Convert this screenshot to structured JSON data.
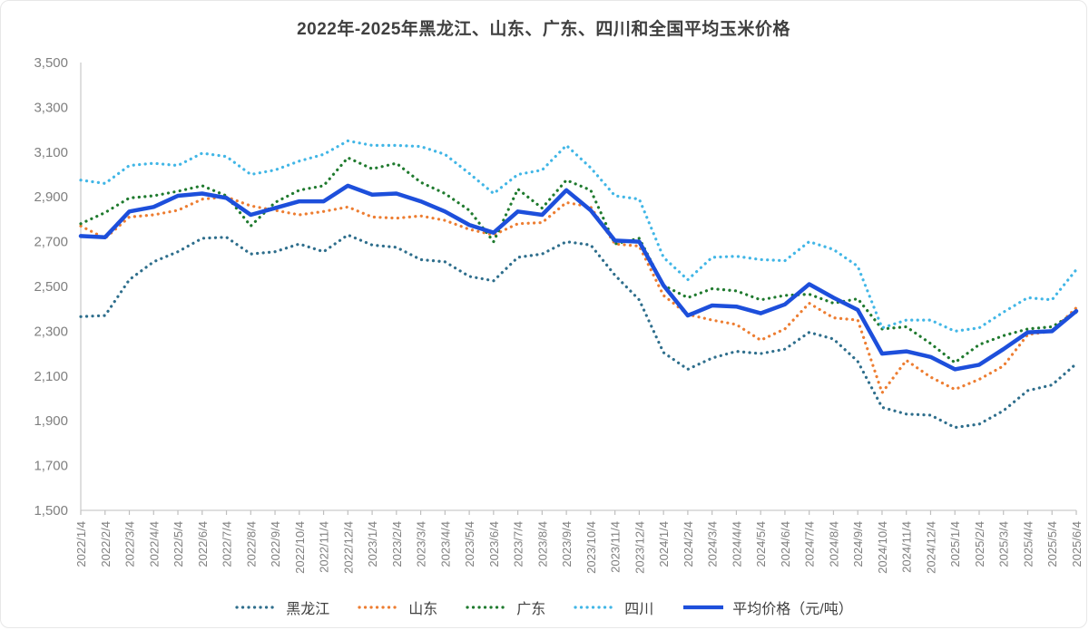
{
  "title": "2022年-2025年黑龙江、山东、广东、四川和全国平均玉米价格",
  "colors": {
    "title_text": "#3f3f3f",
    "axis_text": "#7f7f7f",
    "axis_line": "#cccccc",
    "tick_mark": "#bfbfbf",
    "heilongjiang": "#2E6E8C",
    "shandong": "#ED7D31",
    "guangdong": "#1F7A2E",
    "sichuan": "#41B6E6",
    "average": "#1D4FDB"
  },
  "chart_data": {
    "type": "line",
    "title": "2022年-2025年黑龙江、山东、广东、四川和全国平均玉米价格",
    "xlabel": "",
    "ylabel": "",
    "ylim": [
      1500,
      3500
    ],
    "ytick_step": 200,
    "yticks": [
      "3,500",
      "3,300",
      "3,100",
      "2,900",
      "2,700",
      "2,500",
      "2,300",
      "2,100",
      "1,900",
      "1,700",
      "1,500"
    ],
    "grid": false,
    "legend_position": "bottom",
    "x": [
      "2022/1/4",
      "2022/2/4",
      "2022/3/4",
      "2022/4/4",
      "2022/5/4",
      "2022/6/4",
      "2022/7/4",
      "2022/8/4",
      "2022/9/4",
      "2022/10/4",
      "2022/11/4",
      "2022/12/4",
      "2023/1/4",
      "2023/2/4",
      "2023/3/4",
      "2023/4/4",
      "2023/5/4",
      "2023/6/4",
      "2023/7/4",
      "2023/8/4",
      "2023/9/4",
      "2023/10/4",
      "2023/11/4",
      "2023/12/4",
      "2024/1/4",
      "2024/2/4",
      "2024/3/4",
      "2024/4/4",
      "2024/5/4",
      "2024/6/4",
      "2024/7/4",
      "2024/8/4",
      "2024/9/4",
      "2024/10/4",
      "2024/11/4",
      "2024/12/4",
      "2025/1/4",
      "2025/2/4",
      "2025/3/4",
      "2025/4/4",
      "2025/5/4",
      "2025/6/4"
    ],
    "series": [
      {
        "name": "黑龙江",
        "key": "heilongjiang",
        "color": "#2E6E8C",
        "style": "dotted",
        "values": [
          2365,
          2370,
          2530,
          2610,
          2655,
          2715,
          2720,
          2645,
          2655,
          2690,
          2655,
          2730,
          2685,
          2675,
          2620,
          2610,
          2545,
          2525,
          2630,
          2645,
          2700,
          2685,
          2550,
          2440,
          2205,
          2130,
          2180,
          2210,
          2200,
          2220,
          2295,
          2265,
          2165,
          1960,
          1930,
          1925,
          1870,
          1885,
          1945,
          2035,
          2060,
          2155
        ]
      },
      {
        "name": "山东",
        "key": "shandong",
        "color": "#ED7D31",
        "style": "dotted",
        "values": [
          2770,
          2715,
          2810,
          2820,
          2840,
          2890,
          2900,
          2860,
          2840,
          2820,
          2835,
          2855,
          2810,
          2805,
          2815,
          2795,
          2755,
          2730,
          2780,
          2785,
          2875,
          2855,
          2690,
          2680,
          2460,
          2375,
          2350,
          2330,
          2260,
          2310,
          2425,
          2360,
          2350,
          2025,
          2170,
          2095,
          2040,
          2085,
          2145,
          2285,
          2300,
          2405
        ]
      },
      {
        "name": "广东",
        "key": "guangdong",
        "color": "#1F7A2E",
        "style": "dotted",
        "values": [
          2780,
          2830,
          2895,
          2905,
          2925,
          2950,
          2905,
          2770,
          2875,
          2930,
          2950,
          3075,
          3025,
          3050,
          2965,
          2915,
          2840,
          2700,
          2935,
          2850,
          2975,
          2930,
          2690,
          2715,
          2505,
          2450,
          2490,
          2480,
          2440,
          2460,
          2465,
          2425,
          2445,
          2310,
          2320,
          2245,
          2160,
          2240,
          2280,
          2310,
          2320,
          2385
        ]
      },
      {
        "name": "四川",
        "key": "sichuan",
        "color": "#41B6E6",
        "style": "dotted",
        "values": [
          2975,
          2960,
          3040,
          3050,
          3040,
          3095,
          3080,
          3000,
          3020,
          3060,
          3090,
          3150,
          3130,
          3130,
          3125,
          3090,
          3005,
          2915,
          3000,
          3020,
          3130,
          3030,
          2905,
          2890,
          2630,
          2530,
          2630,
          2635,
          2620,
          2615,
          2700,
          2665,
          2590,
          2315,
          2350,
          2350,
          2300,
          2315,
          2385,
          2450,
          2440,
          2575
        ]
      },
      {
        "name": "平均价格（元/吨）",
        "key": "average",
        "color": "#1D4FDB",
        "style": "solid",
        "values": [
          2725,
          2720,
          2835,
          2855,
          2905,
          2915,
          2895,
          2820,
          2850,
          2880,
          2880,
          2950,
          2910,
          2915,
          2880,
          2835,
          2775,
          2740,
          2835,
          2820,
          2930,
          2840,
          2705,
          2700,
          2505,
          2370,
          2415,
          2410,
          2380,
          2420,
          2510,
          2450,
          2395,
          2200,
          2210,
          2185,
          2130,
          2150,
          2220,
          2295,
          2300,
          2390
        ]
      }
    ]
  }
}
